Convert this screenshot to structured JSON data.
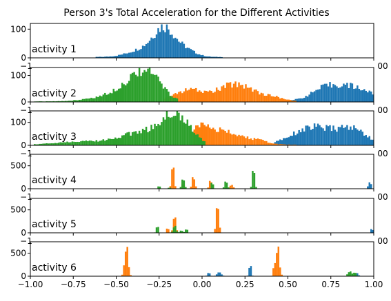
{
  "chart_data": {
    "type": "histogram",
    "title": "Person 3's Total Acceleration for the Different Activities",
    "xlim": [
      -1.0,
      1.0
    ],
    "x_ticks": [
      "−1.00",
      "−0.75",
      "−0.50",
      "−0.25",
      "0.00",
      "0.25",
      "0.50",
      "0.75",
      "1.00"
    ],
    "overlap_tick_left": "−1",
    "overlap_tick_right": "00",
    "colors": {
      "blue": "#1f77b4",
      "orange": "#ff7f0e",
      "green": "#2ca02c"
    },
    "panels": [
      {
        "label": "activity 1",
        "ylim": [
          0,
          120
        ],
        "y_ticks": [
          "0",
          "100"
        ],
        "series": [
          {
            "color": "blue",
            "peaks": [
              [
                -0.22,
                90,
                0.06
              ],
              [
                -0.33,
                28,
                0.09
              ],
              [
                -0.1,
                25,
                0.06
              ]
            ],
            "range": [
              -0.62,
              0.12
            ],
            "base": 3
          }
        ]
      },
      {
        "label": "activity 2",
        "ylim": [
          0,
          130
        ],
        "y_ticks": [
          "0",
          "100"
        ],
        "series": [
          {
            "color": "blue",
            "peaks": [
              [
                0.85,
                55,
                0.12
              ],
              [
                0.7,
                25,
                0.07
              ]
            ],
            "range": [
              0.5,
              1.0
            ],
            "base": 5
          },
          {
            "color": "orange",
            "peaks": [
              [
                0.2,
                65,
                0.11
              ],
              [
                -0.08,
                40,
                0.08
              ],
              [
                0.43,
                10,
                0.05
              ]
            ],
            "range": [
              -0.22,
              0.55
            ],
            "base": 3
          },
          {
            "color": "green",
            "peaks": [
              [
                -0.32,
                110,
                0.08
              ],
              [
                -0.45,
                40,
                0.08
              ],
              [
                -0.6,
                12,
                0.1
              ]
            ],
            "range": [
              -0.98,
              -0.14
            ],
            "base": 2
          }
        ]
      },
      {
        "label": "activity 3",
        "ylim": [
          0,
          150
        ],
        "y_ticks": [
          "0",
          "100"
        ],
        "series": [
          {
            "color": "blue",
            "peaks": [
              [
                0.65,
                75,
                0.12
              ],
              [
                0.88,
                60,
                0.08
              ]
            ],
            "range": [
              0.42,
              1.0
            ],
            "base": 4
          },
          {
            "color": "orange",
            "peaks": [
              [
                0.0,
                90,
                0.06
              ],
              [
                0.15,
                50,
                0.08
              ],
              [
                0.32,
                18,
                0.06
              ]
            ],
            "range": [
              -0.05,
              0.55
            ],
            "base": 3
          },
          {
            "color": "green",
            "peaks": [
              [
                -0.15,
                130,
                0.08
              ],
              [
                -0.35,
                55,
                0.12
              ],
              [
                -0.7,
                15,
                0.15
              ]
            ],
            "range": [
              -0.98,
              0.02
            ],
            "base": 2
          }
        ]
      },
      {
        "label": "activity 4",
        "ylim": [
          0,
          750
        ],
        "y_ticks": [
          "0",
          "500"
        ],
        "series": [
          {
            "color": "blue",
            "peaks": [
              [
                0.98,
                170,
                0.006
              ],
              [
                0.97,
                60,
                0.006
              ]
            ],
            "range": [
              0.95,
              1.0
            ],
            "base": 0
          },
          {
            "color": "orange",
            "peaks": [
              [
                -0.17,
                540,
                0.007
              ],
              [
                -0.05,
                260,
                0.008
              ],
              [
                0.05,
                190,
                0.008
              ],
              [
                -0.11,
                120,
                0.006
              ],
              [
                0.17,
                80,
                0.01
              ]
            ],
            "range": [
              -0.2,
              0.22
            ],
            "base": 0
          },
          {
            "color": "green",
            "peaks": [
              [
                0.3,
                430,
                0.007
              ],
              [
                -0.11,
                220,
                0.008
              ],
              [
                0.14,
                200,
                0.008
              ],
              [
                -0.25,
                70,
                0.006
              ],
              [
                0.06,
                160,
                0.006
              ],
              [
                -0.19,
                30,
                0.006
              ]
            ],
            "range": [
              -0.28,
              0.32
            ],
            "base": 0
          }
        ]
      },
      {
        "label": "activity 5",
        "ylim": [
          0,
          750
        ],
        "y_ticks": [
          "0",
          "500"
        ],
        "series": [
          {
            "color": "blue",
            "peaks": [
              [
                0.99,
                120,
                0.005
              ]
            ],
            "range": [
              0.97,
              1.0
            ],
            "base": 0
          },
          {
            "color": "orange",
            "peaks": [
              [
                0.09,
                580,
                0.008
              ],
              [
                -0.16,
                380,
                0.008
              ],
              [
                -0.2,
                120,
                0.006
              ]
            ],
            "range": [
              -0.23,
              0.12
            ],
            "base": 0
          },
          {
            "color": "green",
            "peaks": [
              [
                -0.16,
                160,
                0.008
              ],
              [
                -0.26,
                180,
                0.006
              ],
              [
                -0.09,
                100,
                0.006
              ],
              [
                -0.12,
                60,
                0.008
              ]
            ],
            "range": [
              -0.28,
              -0.05
            ],
            "base": 0
          }
        ]
      },
      {
        "label": "activity 6",
        "ylim": [
          0,
          750
        ],
        "y_ticks": [
          "0",
          "500"
        ],
        "series": [
          {
            "color": "blue",
            "peaks": [
              [
                0.28,
                280,
                0.006
              ],
              [
                0.1,
                90,
                0.012
              ],
              [
                0.04,
                70,
                0.008
              ],
              [
                0.9,
                70,
                0.01
              ]
            ],
            "range": [
              0.02,
              0.92
            ],
            "base": 0
          },
          {
            "color": "orange",
            "peaks": [
              [
                -0.44,
                680,
                0.01
              ],
              [
                0.44,
                650,
                0.01
              ],
              [
                0.42,
                180,
                0.006
              ]
            ],
            "range": [
              -0.47,
              0.47
            ],
            "base": 0
          },
          {
            "color": "green",
            "peaks": [
              [
                0.86,
                110,
                0.01
              ],
              [
                0.89,
                80,
                0.008
              ]
            ],
            "range": [
              0.82,
              0.92
            ],
            "base": 0
          }
        ]
      }
    ]
  }
}
